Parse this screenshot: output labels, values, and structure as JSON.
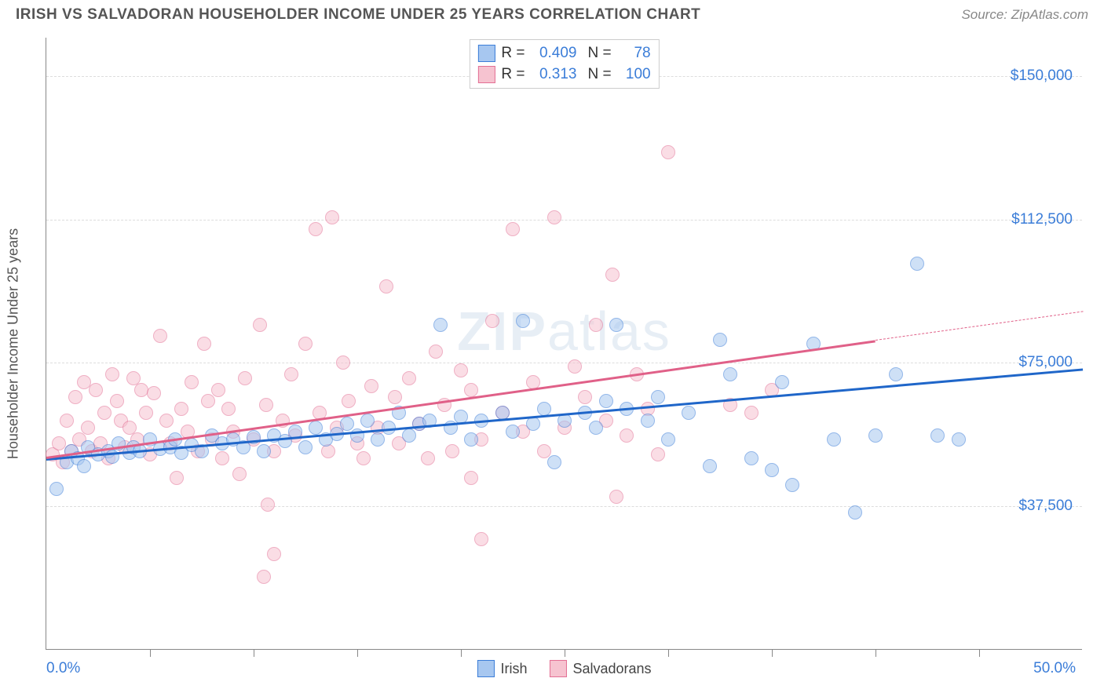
{
  "header": {
    "title": "IRISH VS SALVADORAN HOUSEHOLDER INCOME UNDER 25 YEARS CORRELATION CHART",
    "source": "Source: ZipAtlas.com"
  },
  "watermark": {
    "left": "ZIP",
    "right": "atlas"
  },
  "chart": {
    "type": "scatter",
    "background_color": "#ffffff",
    "grid_color": "#dddddd",
    "axis_color": "#888888",
    "yaxis_title": "Householder Income Under 25 years",
    "yaxis_title_color": "#555555",
    "xlim": [
      0,
      50
    ],
    "ylim": [
      0,
      160000
    ],
    "xticks_at": [
      5,
      10,
      15,
      20,
      25,
      30,
      35,
      40,
      45
    ],
    "xaxis_labels": [
      {
        "value": "0.0%",
        "at": 0
      },
      {
        "value": "50.0%",
        "at": 50
      }
    ],
    "ygrid": [
      {
        "value": 37500,
        "label": "$37,500"
      },
      {
        "value": 75000,
        "label": "$75,000"
      },
      {
        "value": 112500,
        "label": "$112,500"
      },
      {
        "value": 150000,
        "label": "$150,000"
      }
    ],
    "label_color": "#3b7dd8",
    "label_fontsize": 19,
    "point_radius": 9,
    "point_opacity": 0.55,
    "series": [
      {
        "name": "Irish",
        "fill": "#a7c7f0",
        "stroke": "#3b7dd8",
        "trend_color": "#1f66c9",
        "trend": {
          "x0": 0,
          "y0": 50000,
          "x1": 50,
          "y1": 73500
        },
        "r_label": "R =",
        "r_value": "0.409",
        "n_label": "N =",
        "n_value": "78",
        "points": [
          [
            0.5,
            42000
          ],
          [
            1,
            49000
          ],
          [
            1.2,
            52000
          ],
          [
            1.5,
            50000
          ],
          [
            1.8,
            48000
          ],
          [
            2,
            53000
          ],
          [
            2.5,
            51000
          ],
          [
            3,
            52000
          ],
          [
            3.2,
            50500
          ],
          [
            3.5,
            54000
          ],
          [
            4,
            51500
          ],
          [
            4.2,
            53000
          ],
          [
            4.5,
            52000
          ],
          [
            5,
            55000
          ],
          [
            5.5,
            52500
          ],
          [
            6,
            53000
          ],
          [
            6.2,
            55000
          ],
          [
            6.5,
            51500
          ],
          [
            7,
            53500
          ],
          [
            7.5,
            52000
          ],
          [
            8,
            56000
          ],
          [
            8.5,
            54000
          ],
          [
            9,
            55000
          ],
          [
            9.5,
            53000
          ],
          [
            10,
            55500
          ],
          [
            10.5,
            52000
          ],
          [
            11,
            56000
          ],
          [
            11.5,
            54500
          ],
          [
            12,
            57000
          ],
          [
            12.5,
            53000
          ],
          [
            13,
            58000
          ],
          [
            13.5,
            55000
          ],
          [
            14,
            56500
          ],
          [
            14.5,
            59000
          ],
          [
            15,
            56000
          ],
          [
            15.5,
            60000
          ],
          [
            16,
            55000
          ],
          [
            16.5,
            58000
          ],
          [
            17,
            62000
          ],
          [
            17.5,
            56000
          ],
          [
            18,
            59000
          ],
          [
            18.5,
            60000
          ],
          [
            19,
            85000
          ],
          [
            19.5,
            58000
          ],
          [
            20,
            61000
          ],
          [
            20.5,
            55000
          ],
          [
            21,
            60000
          ],
          [
            22,
            62000
          ],
          [
            22.5,
            57000
          ],
          [
            23,
            86000
          ],
          [
            23.5,
            59000
          ],
          [
            24,
            63000
          ],
          [
            24.5,
            49000
          ],
          [
            25,
            60000
          ],
          [
            26,
            62000
          ],
          [
            26.5,
            58000
          ],
          [
            27,
            65000
          ],
          [
            27.5,
            85000
          ],
          [
            28,
            63000
          ],
          [
            29,
            60000
          ],
          [
            29.5,
            66000
          ],
          [
            30,
            55000
          ],
          [
            31,
            62000
          ],
          [
            32,
            48000
          ],
          [
            32.5,
            81000
          ],
          [
            33,
            72000
          ],
          [
            34,
            50000
          ],
          [
            35,
            47000
          ],
          [
            35.5,
            70000
          ],
          [
            36,
            43000
          ],
          [
            37,
            80000
          ],
          [
            38,
            55000
          ],
          [
            39,
            36000
          ],
          [
            40,
            56000
          ],
          [
            41,
            72000
          ],
          [
            42,
            101000
          ],
          [
            43,
            56000
          ],
          [
            44,
            55000
          ]
        ]
      },
      {
        "name": "Salvadorans",
        "fill": "#f6c3d0",
        "stroke": "#e36f94",
        "trend_color": "#e06088",
        "trend": {
          "x0": 0,
          "y0": 50500,
          "x1": 40,
          "y1": 81000
        },
        "trend_dash": {
          "x0": 40,
          "y0": 81000,
          "x1": 50,
          "y1": 88500
        },
        "r_label": "R =",
        "r_value": "0.313",
        "n_label": "N =",
        "n_value": "100",
        "points": [
          [
            0.3,
            51000
          ],
          [
            0.6,
            54000
          ],
          [
            0.8,
            49000
          ],
          [
            1,
            60000
          ],
          [
            1.2,
            52000
          ],
          [
            1.4,
            66000
          ],
          [
            1.6,
            55000
          ],
          [
            1.8,
            70000
          ],
          [
            2,
            58000
          ],
          [
            2.2,
            52000
          ],
          [
            2.4,
            68000
          ],
          [
            2.6,
            54000
          ],
          [
            2.8,
            62000
          ],
          [
            3,
            50000
          ],
          [
            3.2,
            72000
          ],
          [
            3.4,
            65000
          ],
          [
            3.6,
            60000
          ],
          [
            3.8,
            53000
          ],
          [
            4,
            58000
          ],
          [
            4.2,
            71000
          ],
          [
            4.4,
            55000
          ],
          [
            4.6,
            68000
          ],
          [
            4.8,
            62000
          ],
          [
            5,
            51000
          ],
          [
            5.2,
            67000
          ],
          [
            5.5,
            82000
          ],
          [
            5.8,
            60000
          ],
          [
            6,
            54000
          ],
          [
            6.3,
            45000
          ],
          [
            6.5,
            63000
          ],
          [
            6.8,
            57000
          ],
          [
            7,
            70000
          ],
          [
            7.3,
            52000
          ],
          [
            7.6,
            80000
          ],
          [
            7.8,
            65000
          ],
          [
            8,
            55000
          ],
          [
            8.3,
            68000
          ],
          [
            8.5,
            50000
          ],
          [
            8.8,
            63000
          ],
          [
            9,
            57000
          ],
          [
            9.3,
            46000
          ],
          [
            9.6,
            71000
          ],
          [
            10,
            55000
          ],
          [
            10.3,
            85000
          ],
          [
            10.6,
            64000
          ],
          [
            10.7,
            38000
          ],
          [
            11,
            52000
          ],
          [
            11.4,
            60000
          ],
          [
            11.8,
            72000
          ],
          [
            12,
            56000
          ],
          [
            12.5,
            80000
          ],
          [
            13,
            110000
          ],
          [
            13.2,
            62000
          ],
          [
            13.6,
            52000
          ],
          [
            13.8,
            113000
          ],
          [
            14,
            58000
          ],
          [
            14.3,
            75000
          ],
          [
            14.6,
            65000
          ],
          [
            15,
            54000
          ],
          [
            15.3,
            50000
          ],
          [
            15.7,
            69000
          ],
          [
            16,
            58000
          ],
          [
            16.4,
            95000
          ],
          [
            16.8,
            66000
          ],
          [
            17,
            54000
          ],
          [
            17.5,
            71000
          ],
          [
            18,
            59000
          ],
          [
            18.4,
            50000
          ],
          [
            18.8,
            78000
          ],
          [
            19.2,
            64000
          ],
          [
            19.6,
            52000
          ],
          [
            20,
            73000
          ],
          [
            20.5,
            68000
          ],
          [
            21,
            55000
          ],
          [
            21.5,
            86000
          ],
          [
            22,
            62000
          ],
          [
            22.5,
            110000
          ],
          [
            23,
            57000
          ],
          [
            23.5,
            70000
          ],
          [
            24,
            52000
          ],
          [
            24.5,
            113000
          ],
          [
            25,
            58000
          ],
          [
            25.5,
            74000
          ],
          [
            26,
            66000
          ],
          [
            26.5,
            85000
          ],
          [
            27,
            60000
          ],
          [
            27.3,
            98000
          ],
          [
            27.5,
            40000
          ],
          [
            28,
            56000
          ],
          [
            28.5,
            72000
          ],
          [
            29,
            63000
          ],
          [
            29.5,
            51000
          ],
          [
            30,
            130000
          ],
          [
            10.5,
            19000
          ],
          [
            21,
            29000
          ],
          [
            20.5,
            45000
          ],
          [
            33,
            64000
          ],
          [
            34,
            62000
          ],
          [
            35,
            68000
          ],
          [
            11,
            25000
          ]
        ]
      }
    ],
    "legend": {
      "items": [
        {
          "label": "Irish",
          "fill": "#a7c7f0",
          "stroke": "#3b7dd8"
        },
        {
          "label": "Salvadorans",
          "fill": "#f6c3d0",
          "stroke": "#e36f94"
        }
      ]
    }
  }
}
